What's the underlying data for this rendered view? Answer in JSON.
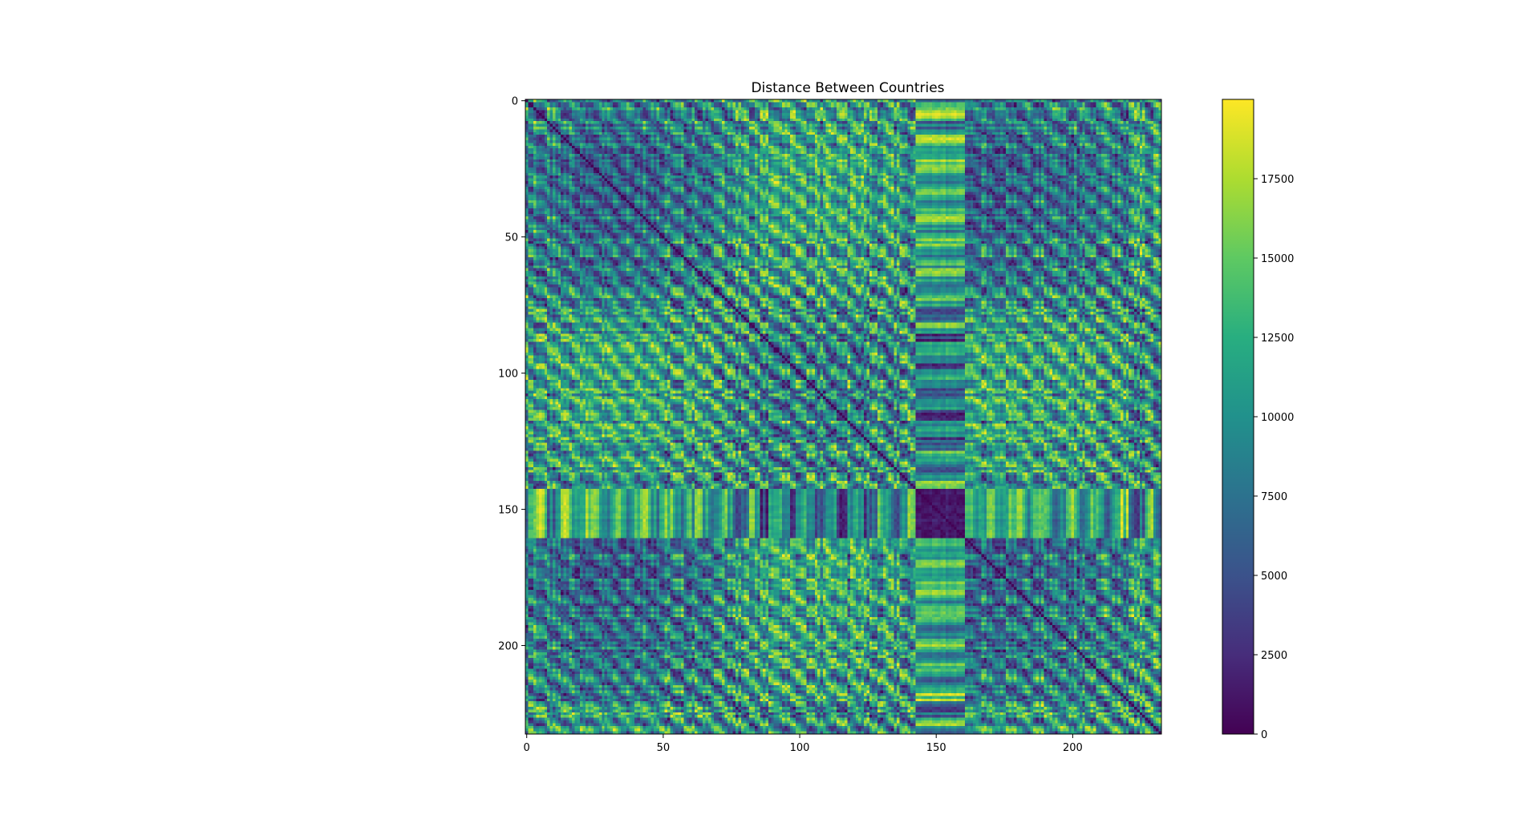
{
  "chart_data": {
    "type": "heatmap",
    "title": "Distance Between Countries",
    "xlabel": "",
    "ylabel": "",
    "n_rows": 233,
    "n_cols": 233,
    "xlim": [
      -0.5,
      232.5
    ],
    "ylim": [
      232.5,
      -0.5
    ],
    "x_ticks": [
      0,
      50,
      100,
      150,
      200
    ],
    "y_ticks": [
      0,
      50,
      100,
      150,
      200
    ],
    "x_tick_labels": [
      "0",
      "50",
      "100",
      "150",
      "200"
    ],
    "y_tick_labels": [
      "0",
      "50",
      "100",
      "150",
      "200"
    ],
    "colormap": "viridis",
    "value_range": [
      0,
      20000
    ],
    "diagonal_value": 0,
    "colorbar": {
      "ticks": [
        0,
        2500,
        5000,
        7500,
        10000,
        12500,
        15000,
        17500
      ],
      "tick_labels": [
        "0",
        "2500",
        "5000",
        "7500",
        "10000",
        "12500",
        "15000",
        "17500"
      ]
    },
    "grid": false,
    "legend": "colorbar-right"
  }
}
